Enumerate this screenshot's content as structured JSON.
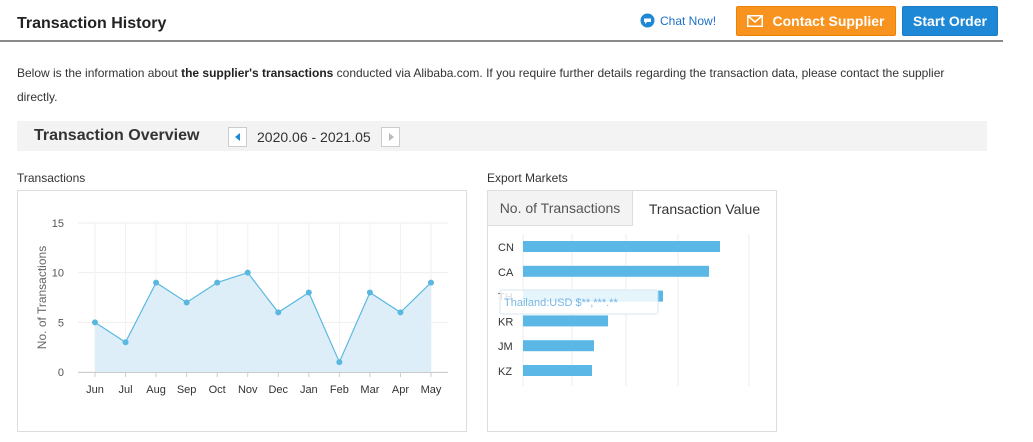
{
  "header": {
    "title": "Transaction History",
    "chat_label": "Chat Now!",
    "contact_label": "Contact Supplier",
    "start_label": "Start Order"
  },
  "intro": {
    "prefix": "Below is the information about ",
    "bold": "the supplier's transactions",
    "suffix": " conducted via Alibaba.com. If you require further details regarding the transaction data, please contact the supplier directly."
  },
  "overview": {
    "title": "Transaction Overview",
    "period": "2020.06 - 2021.05"
  },
  "transactions_label": "Transactions",
  "export_label": "Export Markets",
  "tabs": [
    {
      "label": "No. of Transactions",
      "active": false
    },
    {
      "label": "Transaction Value",
      "active": true
    }
  ],
  "tooltip": {
    "text": "Thailand:USD $**,***.**"
  },
  "colors": {
    "accent_orange": "#f7931e",
    "accent_blue": "#1e88d6",
    "line": "#5ab8e0",
    "area": "#d9ecf7",
    "bar": "#5bb8e6"
  },
  "chart_data": [
    {
      "type": "area",
      "title": "",
      "xlabel": "",
      "ylabel": "No. of Transactions",
      "categories": [
        "Jun",
        "Jul",
        "Aug",
        "Sep",
        "Oct",
        "Nov",
        "Dec",
        "Jan",
        "Feb",
        "Mar",
        "Apr",
        "May"
      ],
      "values": [
        5,
        3,
        9,
        7,
        9,
        10,
        6,
        8,
        1,
        8,
        6,
        9
      ],
      "ylim": [
        0,
        15
      ],
      "yticks": [
        0,
        5,
        10,
        15
      ],
      "grid": true
    },
    {
      "type": "bar",
      "orientation": "horizontal",
      "categories": [
        "CN",
        "CA",
        "TH",
        "KR",
        "JM",
        "KZ"
      ],
      "values": [
        197,
        186,
        140,
        85,
        71,
        69
      ],
      "grid": true
    }
  ]
}
